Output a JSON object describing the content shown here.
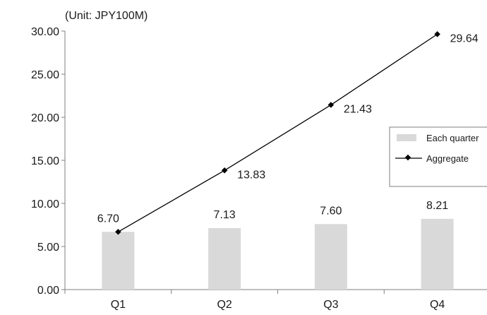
{
  "chart_data": {
    "type": "bar",
    "unit_label": "(Unit: JPY100M)",
    "categories": [
      "Q1",
      "Q2",
      "Q3",
      "Q4"
    ],
    "series": [
      {
        "name": "Each quarter",
        "type": "bar",
        "values": [
          6.7,
          7.13,
          7.6,
          8.21
        ],
        "data_labels": [
          "6.70",
          "7.13",
          "7.60",
          "8.21"
        ],
        "color": "#d9d9d9"
      },
      {
        "name": "Aggregate",
        "type": "line",
        "values": [
          6.7,
          13.83,
          21.43,
          29.64
        ],
        "data_labels": [
          "",
          "13.83",
          "21.43",
          "29.64"
        ],
        "color": "#000000"
      }
    ],
    "y_ticks": [
      "0.00",
      "5.00",
      "10.00",
      "15.00",
      "20.00",
      "25.00",
      "30.00"
    ],
    "ylim": [
      0,
      30
    ],
    "grid": false,
    "legend_position": "right"
  }
}
